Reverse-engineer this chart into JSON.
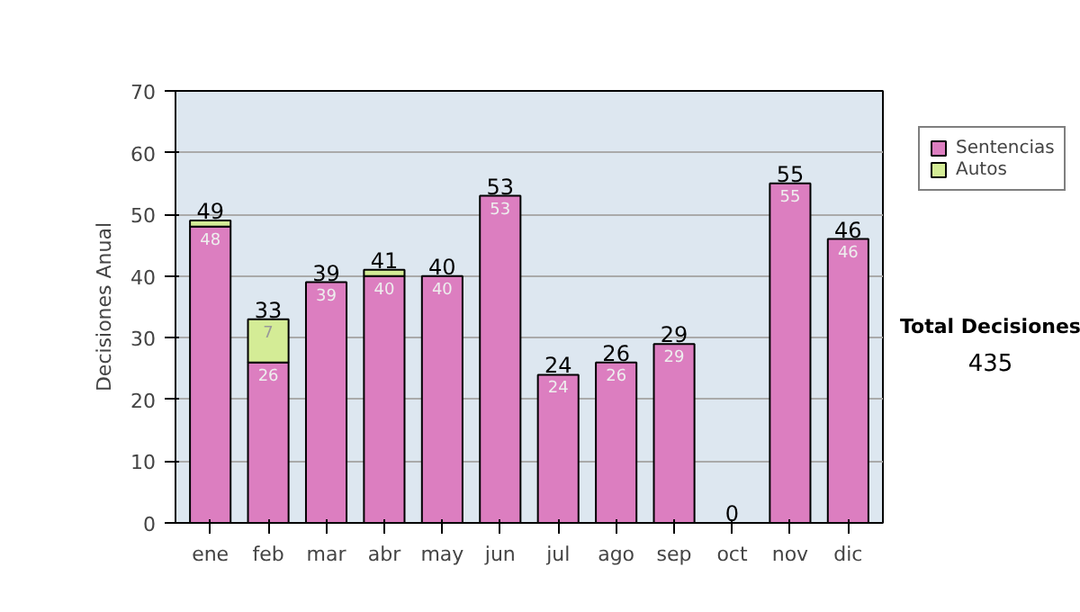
{
  "chart_data": {
    "type": "bar",
    "stacked": true,
    "ylabel": "Decisiones Anual",
    "categories": [
      "ene",
      "feb",
      "mar",
      "abr",
      "may",
      "jun",
      "jul",
      "ago",
      "sep",
      "oct",
      "nov",
      "dic"
    ],
    "series": [
      {
        "name": "Sentencias",
        "color": "#dc7ec0",
        "values": [
          48,
          26,
          39,
          40,
          40,
          53,
          24,
          26,
          29,
          0,
          55,
          46
        ],
        "value_labels": [
          "48",
          "26",
          "39",
          "40",
          "40",
          "53",
          "24",
          "26",
          "29",
          null,
          "55",
          "46"
        ]
      },
      {
        "name": "Autos",
        "color": "#d4ec96",
        "values": [
          1,
          7,
          0,
          1,
          0,
          0,
          0,
          0,
          0,
          0,
          0,
          0
        ],
        "value_labels": [
          null,
          "7",
          null,
          null,
          null,
          null,
          null,
          null,
          null,
          null,
          null,
          null
        ]
      }
    ],
    "totals": [
      "49",
      "33",
      "39",
      "41",
      "40",
      "53",
      "24",
      "26",
      "29",
      "0",
      "55",
      "46"
    ],
    "ylim": [
      0,
      70
    ],
    "yticks": [
      0,
      10,
      20,
      30,
      40,
      50,
      60,
      70
    ],
    "grid": "y",
    "legend": "right",
    "annotations": [
      "Total Decisiones",
      "435"
    ]
  }
}
